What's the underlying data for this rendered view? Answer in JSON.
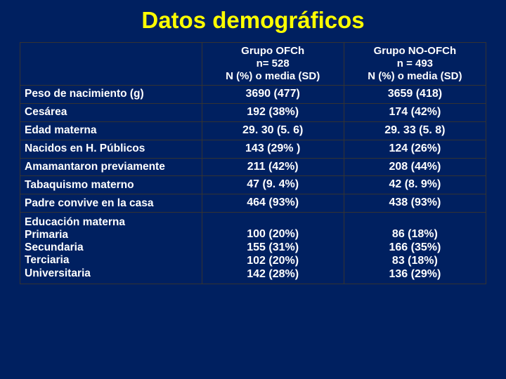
{
  "title": "Datos demográficos",
  "colors": {
    "background": "#002060",
    "title": "#ffff00",
    "text": "#ffffff",
    "border": "#333333"
  },
  "table": {
    "header": {
      "col0": "",
      "col1_l1": "Grupo OFCh",
      "col1_l2": "n= 528",
      "col1_l3": "N (%) o media (SD)",
      "col2_l1": "Grupo NO-OFCh",
      "col2_l2": "n = 493",
      "col2_l3": "N (%) o media (SD)"
    },
    "rows": [
      {
        "label": "Peso de nacimiento (g)",
        "c1": "3690 (477)",
        "c2": "3659 (418)"
      },
      {
        "label": "Cesárea",
        "c1": "192 (38%)",
        "c2": "174 (42%)"
      },
      {
        "label": "Edad materna",
        "c1": "29. 30 (5. 6)",
        "c2": "29. 33 (5. 8)"
      },
      {
        "label": "Nacidos en H. Públicos",
        "c1": "143 (29% )",
        "c2": "124 (26%)"
      },
      {
        "label": "Amamantaron previamente",
        "c1": "211 (42%)",
        "c2": "208 (44%)"
      },
      {
        "label": "Tabaquismo materno",
        "c1": "47 (9. 4%)",
        "c2": "42 (8. 9%)"
      },
      {
        "label": "Padre convive en la casa",
        "c1": "464 (93%)",
        "c2": "438 (93%)"
      }
    ],
    "edu": {
      "labels": {
        "l0": "Educación materna",
        "l1": "Primaria",
        "l2": "Secundaria",
        "l3": "Terciaria",
        "l4": "Universitaria"
      },
      "c1": {
        "v1": "100 (20%)",
        "v2": "155 (31%)",
        "v3": "102 (20%)",
        "v4": "142 (28%)"
      },
      "c2": {
        "v1": "86 (18%)",
        "v2": "166 (35%)",
        "v3": "83 (18%)",
        "v4": "136 (29%)"
      }
    }
  }
}
